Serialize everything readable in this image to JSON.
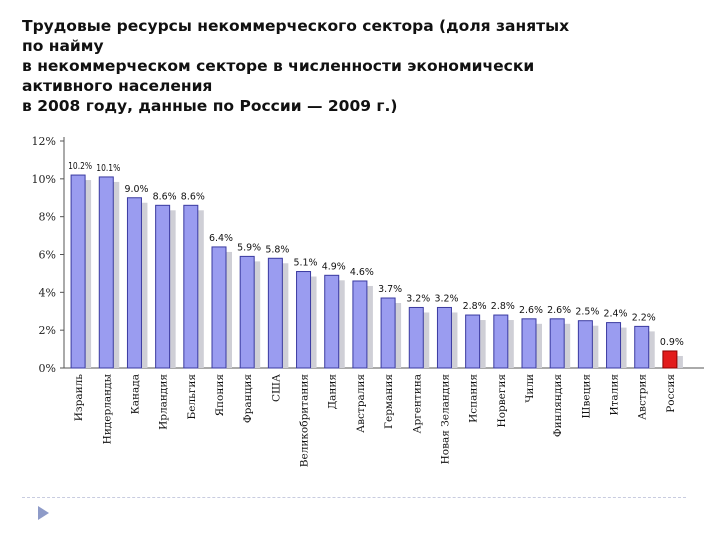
{
  "title": {
    "lines": [
      "Трудовые ресурсы некоммерческого сектора (доля занятых",
      "по найму",
      "в некоммерческом секторе в численности экономически",
      "активного населения",
      "в 2008 году, данные по России — 2009 г.)"
    ]
  },
  "chart_data": {
    "type": "bar",
    "categories": [
      "Израиль",
      "Нидерланды",
      "Канада",
      "Ирландия",
      "Бельгия",
      "Япония",
      "Франция",
      "США",
      "Великобритания",
      "Дания",
      "Австралия",
      "Германия",
      "Аргентина",
      "Новая Зеландия",
      "Испания",
      "Норвегия",
      "Чили",
      "Финляндия",
      "Швеция",
      "Италия",
      "Австрия",
      "Россия"
    ],
    "values": [
      10.2,
      10.1,
      9.0,
      8.6,
      8.6,
      6.4,
      5.9,
      5.8,
      5.1,
      4.9,
      4.6,
      3.7,
      3.2,
      3.2,
      2.8,
      2.8,
      2.6,
      2.6,
      2.5,
      2.4,
      2.2,
      0.9
    ],
    "data_labels": [
      "10.2%",
      "10.1%",
      "9.0%",
      "8.6%",
      "8.6%",
      "6.4%",
      "5.9%",
      "5.8%",
      "5.1%",
      "4.9%",
      "4.6%",
      "3.7%",
      "3.2%",
      "3.2%",
      "2.8%",
      "2.8%",
      "2.6%",
      "2.6%",
      "2.5%",
      "2.4%",
      "2.2%",
      "0.9%"
    ],
    "y_ticks": [
      0,
      2,
      4,
      6,
      8,
      10,
      12
    ],
    "y_tick_labels": [
      "0%",
      "2%",
      "4%",
      "6%",
      "8%",
      "10%",
      "12%"
    ],
    "ylim": [
      0,
      12
    ],
    "grid": false,
    "legend": "none",
    "colors": {
      "bar": "#9a9cf0",
      "bar_stroke": "#3a3aa0",
      "highlight": "#e21b1b",
      "highlight_stroke": "#8a0000",
      "shadow": "#cfcfd6",
      "axis": "#555555"
    },
    "highlight_category": "Россия"
  }
}
